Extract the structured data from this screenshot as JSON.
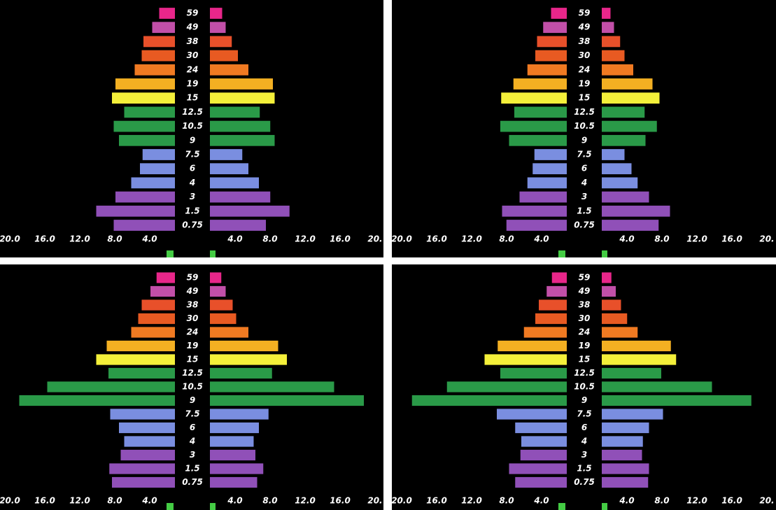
{
  "chart_data": [
    {
      "type": "butterfly",
      "categories": [
        "59",
        "49",
        "38",
        "30",
        "24",
        "19",
        "15",
        "12.5",
        "10.5",
        "9",
        "7.5",
        "6",
        "4",
        "3",
        "1.5",
        "0.75"
      ],
      "colors": [
        "#e8268a",
        "#c24fa8",
        "#e8502a",
        "#e85a22",
        "#f07a22",
        "#f4b022",
        "#f4f03a",
        "#2a9a48",
        "#2a9a48",
        "#2a9a48",
        "#7a8ee0",
        "#7a8ee0",
        "#7a8ee0",
        "#9050b8",
        "#9050b8",
        "#9050b8"
      ],
      "series": [
        {
          "values": [
            1.8,
            2.6,
            3.6,
            3.8,
            4.6,
            6.8,
            7.2,
            5.8,
            7.0,
            6.4,
            3.7,
            4.0,
            5.0,
            6.8,
            9.0,
            7.0
          ]
        },
        {
          "values": [
            1.4,
            1.8,
            2.5,
            3.2,
            4.4,
            7.2,
            7.4,
            5.7,
            6.9,
            7.4,
            3.7,
            4.4,
            5.6,
            6.9,
            9.1,
            6.4
          ]
        }
      ],
      "xlim": [
        0,
        20
      ],
      "left_xticks": [
        {
          "value": 20,
          "label": "20.0"
        },
        {
          "value": 16,
          "label": "16.0"
        },
        {
          "value": 12,
          "label": "12.0"
        },
        {
          "value": 8,
          "label": "8.0"
        },
        {
          "value": 4,
          "label": "4.0"
        }
      ],
      "right_xticks": [
        {
          "value": 4,
          "label": "4.0"
        },
        {
          "value": 8,
          "label": "8.0"
        },
        {
          "value": 12,
          "label": "12.0"
        },
        {
          "value": 16,
          "label": "16.0"
        },
        {
          "value": 20,
          "label": "20."
        }
      ]
    },
    {
      "type": "butterfly",
      "categories": [
        "59",
        "49",
        "38",
        "30",
        "24",
        "19",
        "15",
        "12.5",
        "10.5",
        "9",
        "7.5",
        "6",
        "4",
        "3",
        "1.5",
        "0.75"
      ],
      "colors": [
        "#e8268a",
        "#c24fa8",
        "#e8502a",
        "#e85a22",
        "#f07a22",
        "#f4b022",
        "#f4f03a",
        "#2a9a48",
        "#2a9a48",
        "#2a9a48",
        "#7a8ee0",
        "#7a8ee0",
        "#7a8ee0",
        "#9050b8",
        "#9050b8",
        "#9050b8"
      ],
      "series": [
        {
          "values": [
            1.8,
            2.7,
            3.4,
            3.6,
            4.5,
            6.1,
            7.5,
            6.0,
            7.6,
            6.6,
            3.7,
            3.9,
            4.5,
            5.4,
            7.4,
            6.9
          ]
        },
        {
          "values": [
            1.0,
            1.4,
            2.1,
            2.6,
            3.6,
            5.8,
            6.6,
            4.9,
            6.3,
            5.0,
            2.6,
            3.4,
            4.1,
            5.4,
            7.8,
            6.5
          ]
        }
      ],
      "xlim": [
        0,
        20
      ],
      "left_xticks": [
        {
          "value": 20,
          "label": "20.0"
        },
        {
          "value": 16,
          "label": "16.0"
        },
        {
          "value": 12,
          "label": "12.0"
        },
        {
          "value": 8,
          "label": "8.0"
        },
        {
          "value": 4,
          "label": "4.0"
        }
      ],
      "right_xticks": [
        {
          "value": 4,
          "label": "4.0"
        },
        {
          "value": 8,
          "label": "8.0"
        },
        {
          "value": 12,
          "label": "12.0"
        },
        {
          "value": 16,
          "label": "16.0"
        },
        {
          "value": 20,
          "label": "20."
        }
      ]
    },
    {
      "type": "butterfly",
      "categories": [
        "59",
        "49",
        "38",
        "30",
        "24",
        "19",
        "15",
        "12.5",
        "10.5",
        "9",
        "7.5",
        "6",
        "4",
        "3",
        "1.5",
        "0.75"
      ],
      "colors": [
        "#e8268a",
        "#c24fa8",
        "#e8502a",
        "#e85a22",
        "#f07a22",
        "#f4b022",
        "#f4f03a",
        "#2a9a48",
        "#2a9a48",
        "#2a9a48",
        "#7a8ee0",
        "#7a8ee0",
        "#7a8ee0",
        "#9050b8",
        "#9050b8",
        "#9050b8"
      ],
      "series": [
        {
          "values": [
            2.1,
            2.8,
            3.8,
            4.2,
            5.0,
            7.8,
            9.0,
            7.6,
            14.6,
            17.8,
            7.4,
            6.4,
            5.8,
            6.2,
            7.5,
            7.2
          ]
        },
        {
          "values": [
            1.3,
            1.8,
            2.6,
            3.0,
            4.4,
            7.8,
            8.8,
            7.1,
            14.2,
            17.6,
            6.7,
            5.6,
            5.0,
            5.2,
            6.1,
            5.4
          ]
        }
      ],
      "xlim": [
        0,
        20
      ],
      "left_xticks": [
        {
          "value": 20,
          "label": "20.0"
        },
        {
          "value": 16,
          "label": "16.0"
        },
        {
          "value": 12,
          "label": "12.0"
        },
        {
          "value": 8,
          "label": "8.0"
        },
        {
          "value": 4,
          "label": "4.0"
        }
      ],
      "right_xticks": [
        {
          "value": 4,
          "label": "4.0"
        },
        {
          "value": 8,
          "label": "8.0"
        },
        {
          "value": 12,
          "label": "12.0"
        },
        {
          "value": 16,
          "label": "16.0"
        },
        {
          "value": 20,
          "label": "20."
        }
      ]
    },
    {
      "type": "butterfly",
      "categories": [
        "59",
        "49",
        "38",
        "30",
        "24",
        "19",
        "15",
        "12.5",
        "10.5",
        "9",
        "7.5",
        "6",
        "4",
        "3",
        "1.5",
        "0.75"
      ],
      "colors": [
        "#e8268a",
        "#c24fa8",
        "#e8502a",
        "#e85a22",
        "#f07a22",
        "#f4b022",
        "#f4f03a",
        "#2a9a48",
        "#2a9a48",
        "#2a9a48",
        "#7a8ee0",
        "#7a8ee0",
        "#7a8ee0",
        "#9050b8",
        "#9050b8",
        "#9050b8"
      ],
      "series": [
        {
          "values": [
            1.7,
            2.3,
            3.2,
            3.6,
            4.9,
            7.9,
            9.4,
            7.6,
            13.7,
            17.7,
            8.0,
            5.9,
            5.2,
            5.3,
            6.6,
            5.9
          ]
        },
        {
          "values": [
            1.1,
            1.6,
            2.2,
            2.9,
            4.1,
            7.9,
            8.5,
            6.8,
            12.6,
            17.1,
            7.0,
            5.4,
            4.7,
            4.6,
            5.4,
            5.3
          ]
        }
      ],
      "xlim": [
        0,
        20
      ],
      "left_xticks": [
        {
          "value": 20,
          "label": "20.0"
        },
        {
          "value": 16,
          "label": "16.0"
        },
        {
          "value": 12,
          "label": "12.0"
        },
        {
          "value": 8,
          "label": "8.0"
        },
        {
          "value": 4,
          "label": "4.0"
        }
      ],
      "right_xticks": [
        {
          "value": 4,
          "label": "4.0"
        },
        {
          "value": 8,
          "label": "8.0"
        },
        {
          "value": 12,
          "label": "12.0"
        },
        {
          "value": 16,
          "label": "16.0"
        },
        {
          "value": 20,
          "label": "20."
        }
      ]
    }
  ]
}
